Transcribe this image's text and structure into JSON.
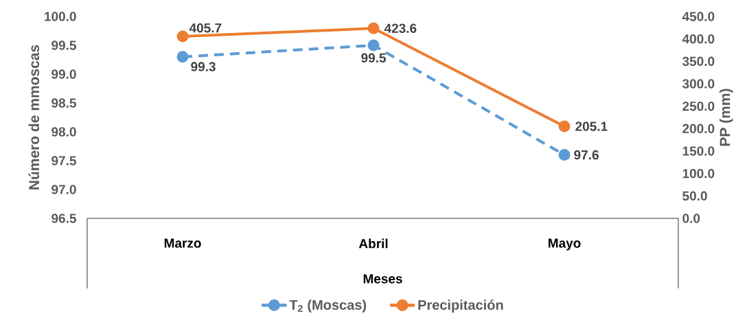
{
  "chart_data": {
    "type": "line",
    "categories": [
      "Marzo",
      "Abril",
      "Mayo"
    ],
    "xlabel": "Meses",
    "ylabel": "Número de mmoscas",
    "y2label": "PP (mm)",
    "series": [
      {
        "name": "T$_{2}$ (Moscas)",
        "color": "#5b9bd5",
        "values": [
          99.3,
          99.5,
          97.6
        ],
        "line_style": "dashed"
      },
      {
        "name": "Precipitación",
        "color": "#ed7d31",
        "values": [
          405.7,
          423.6,
          205.1
        ],
        "axis": "y2",
        "line_style": "solid"
      }
    ],
    "ylim": [
      96.5,
      100
    ],
    "yticks": [
      96.5,
      {
        "value": 97,
        "label": "97.0"
      },
      97.5,
      {
        "value": 98,
        "label": "98.0"
      },
      98.5,
      {
        "value": 99,
        "label": "99.0"
      },
      99.5,
      {
        "value": 100,
        "label": "100.0"
      }
    ],
    "y2lim": [
      0,
      450
    ],
    "y2ticks": [
      {
        "value": 0,
        "label": "0.0"
      },
      {
        "value": 50,
        "label": "50.0"
      },
      {
        "value": 100,
        "label": "100.0"
      },
      {
        "value": 150,
        "label": "150.0"
      },
      {
        "value": 200,
        "label": "200.0"
      },
      {
        "value": 250,
        "label": "250.0"
      },
      {
        "value": 300,
        "label": "300.0"
      },
      {
        "value": 350,
        "label": "350.0"
      },
      {
        "value": 400,
        "label": "400.0"
      },
      {
        "value": 450,
        "label": "450.0"
      }
    ],
    "marker": "circle",
    "data_labels": true,
    "legend": "bottom",
    "grid": false
  }
}
